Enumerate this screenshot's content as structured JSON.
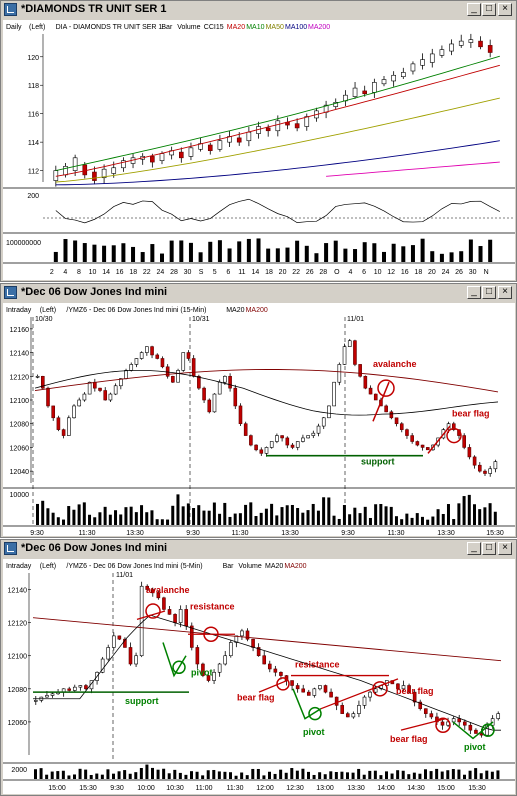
{
  "windows": [
    {
      "title": "*DIAMONDS TR UNIT SER 1",
      "info": [
        "Daily",
        "(Left)",
        "DIA - DIAMONDS TR UNIT SER 1",
        "Bar",
        "Volume",
        "CCI15",
        "MA20",
        "MA10",
        "MA50",
        "MA100",
        "MA200"
      ],
      "info_colors": [
        "#000000",
        "#000000",
        "#000000",
        "#000000",
        "#000000",
        "#000000",
        "#c00000",
        "#008000",
        "#808000",
        "#000080",
        "#c000c0"
      ]
    },
    {
      "title": "*Dec 06  Dow Jones Ind mini",
      "info": [
        "Intraday",
        "(Left)",
        "/YMZ6 - Dec 06  Dow Jones Ind mini (15-Min)",
        "MA20",
        "MA200"
      ],
      "info_colors": [
        "#000000",
        "#000000",
        "#000000",
        "#000000",
        "#800000"
      ]
    },
    {
      "title": "*Dec 06  Dow Jones Ind mini",
      "info": [
        "Intraday",
        "(Left)",
        "/YMZ6 - Dec 06  Dow Jones Ind mini (5-Min)",
        "Bar",
        "Volume",
        "MA20",
        "MA200"
      ],
      "info_colors": [
        "#000000",
        "#000000",
        "#000000",
        "#000000",
        "#000000",
        "#000000",
        "#800000"
      ]
    }
  ],
  "window_buttons": [
    "_",
    "□",
    "×"
  ],
  "chart_data": [
    {
      "type": "candlestick",
      "title": "DIA - DIAMONDS TR UNIT SER 1",
      "yticks": [
        112,
        114,
        116,
        118,
        120
      ],
      "ylim": [
        111.2,
        121.6
      ],
      "xticks": [
        "2",
        "4",
        "8",
        "10",
        "14",
        "16",
        "18",
        "22",
        "24",
        "28",
        "30",
        "S",
        "5",
        "6",
        "11",
        "14",
        "18",
        "20",
        "22",
        "26",
        "28",
        "O",
        "4",
        "6",
        "10",
        "12",
        "16",
        "18",
        "20",
        "24",
        "26",
        "30",
        "N"
      ],
      "candles_approx": [
        [
          111.3,
          112.0
        ],
        [
          111.7,
          112.3
        ],
        [
          112.0,
          112.9
        ],
        [
          112.4,
          111.7
        ],
        [
          111.9,
          111.3
        ],
        [
          111.5,
          112.1
        ],
        [
          111.8,
          112.2
        ],
        [
          112.2,
          112.7
        ],
        [
          112.5,
          112.9
        ],
        [
          112.8,
          113.0
        ],
        [
          113.0,
          112.6
        ],
        [
          112.7,
          113.2
        ],
        [
          113.1,
          113.4
        ],
        [
          113.3,
          112.9
        ],
        [
          113.0,
          113.6
        ],
        [
          113.5,
          113.9
        ],
        [
          113.8,
          113.4
        ],
        [
          113.5,
          114.1
        ],
        [
          114.0,
          114.4
        ],
        [
          114.3,
          114.0
        ],
        [
          114.1,
          114.7
        ],
        [
          114.6,
          115.1
        ],
        [
          115.0,
          114.8
        ],
        [
          114.8,
          115.5
        ],
        [
          115.4,
          115.2
        ],
        [
          115.3,
          115.0
        ],
        [
          115.1,
          115.8
        ],
        [
          115.7,
          116.2
        ],
        [
          116.1,
          116.6
        ],
        [
          116.5,
          116.8
        ],
        [
          116.9,
          117.3
        ],
        [
          117.2,
          117.8
        ],
        [
          117.6,
          117.4
        ],
        [
          117.5,
          118.2
        ],
        [
          118.1,
          118.4
        ],
        [
          118.3,
          118.7
        ],
        [
          118.6,
          118.9
        ],
        [
          119.0,
          119.5
        ],
        [
          119.4,
          119.8
        ],
        [
          119.6,
          120.2
        ],
        [
          120.1,
          120.5
        ],
        [
          120.4,
          120.9
        ],
        [
          120.8,
          121.1
        ],
        [
          121.0,
          121.2
        ],
        [
          121.1,
          120.7
        ],
        [
          120.8,
          120.3
        ]
      ],
      "ma20": [
        [
          0,
          112.0
        ],
        [
          46,
          120.1
        ]
      ],
      "ma50": [
        [
          0,
          111.2
        ],
        [
          46,
          117.1
        ]
      ],
      "ma100": [
        [
          0,
          111.0
        ],
        [
          46,
          114.1
        ]
      ],
      "ma200": [
        [
          28,
          111.6
        ],
        [
          46,
          112.6
        ]
      ],
      "cci_level": 200,
      "volume_level": 100000000
    },
    {
      "type": "candlestick",
      "title": "/YMZ6 - Dec 06 Dow Jones Ind mini (15-Min)",
      "yticks": [
        12040,
        12060,
        12080,
        12100,
        12120,
        12140,
        12160
      ],
      "ylim": [
        12030,
        12170
      ],
      "xticks": [
        "9:30",
        "11:30",
        "13:30",
        "9:30",
        "11:30",
        "13:30",
        "9:30",
        "11:30",
        "13:30",
        "15:30"
      ],
      "date_labels": [
        "10/30",
        "10/31",
        "11/01"
      ],
      "annotations": [
        "avalanche",
        "bear flag",
        "support"
      ],
      "volume_level": 10000
    },
    {
      "type": "candlestick",
      "title": "/YMZ6 - Dec 06 Dow Jones Ind mini (5-Min)",
      "yticks": [
        12060,
        12080,
        12100,
        12120,
        12140
      ],
      "ylim": [
        12040,
        12150
      ],
      "xticks": [
        "15:00",
        "15:30",
        "9:30",
        "10:00",
        "10:30",
        "11:00",
        "11:30",
        "12:00",
        "12:30",
        "13:00",
        "13:30",
        "14:00",
        "14:30",
        "15:00",
        "15:30"
      ],
      "date_labels": [
        "11/01"
      ],
      "annotations": [
        "avalanche",
        "resistance",
        "pivot",
        "support",
        "resistance",
        "bear flag",
        "pivot",
        "bear flag",
        "bear flag",
        "pivot"
      ],
      "volume_level": 2000
    }
  ]
}
